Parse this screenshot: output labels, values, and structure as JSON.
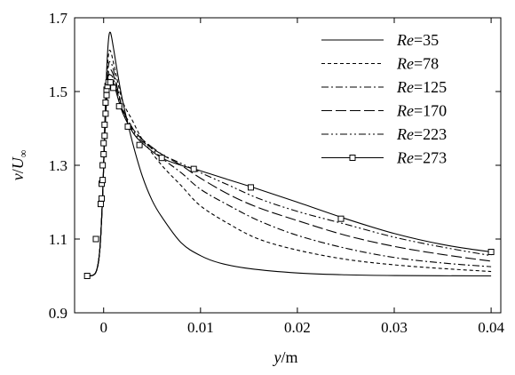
{
  "chart_data": {
    "type": "line",
    "title": "",
    "xlabel": {
      "italic": "y",
      "rest": "/m"
    },
    "ylabel": {
      "italic_v": "v",
      "slash": "/",
      "italic_U": "U",
      "sub": "∞"
    },
    "xlim": [
      -0.003,
      0.041
    ],
    "ylim": [
      0.9,
      1.7
    ],
    "xticks": [
      0,
      0.01,
      0.02,
      0.03,
      0.04
    ],
    "xtick_labels": [
      "0",
      "0.01",
      "0.02",
      "0.03",
      "0.04"
    ],
    "yticks": [
      0.9,
      1.1,
      1.3,
      1.5,
      1.7
    ],
    "ytick_labels": [
      "0.9",
      "1.1",
      "1.3",
      "1.5",
      "1.7"
    ],
    "grid": false,
    "legend_position": "top-right",
    "series": [
      {
        "name": "Re=35",
        "label_italic": "Re",
        "label_value": "=35",
        "dash": "",
        "marker": "",
        "x": [
          -0.0015,
          -0.0008,
          -0.0004,
          -0.0001,
          0.0001,
          0.0003,
          0.0005,
          0.0007,
          0.001,
          0.0015,
          0.002,
          0.003,
          0.004,
          0.005,
          0.006,
          0.008,
          0.01,
          0.012,
          0.015,
          0.02,
          0.025,
          0.03,
          0.04
        ],
        "y": [
          1.0,
          1.01,
          1.07,
          1.22,
          1.4,
          1.55,
          1.64,
          1.66,
          1.62,
          1.54,
          1.47,
          1.36,
          1.27,
          1.205,
          1.16,
          1.09,
          1.055,
          1.035,
          1.02,
          1.008,
          1.003,
          1.001,
          1.0
        ]
      },
      {
        "name": "Re=78",
        "label_italic": "Re",
        "label_value": "=78",
        "dash": "4,3",
        "marker": "",
        "x": [
          -0.0015,
          -0.0008,
          -0.0004,
          -0.0001,
          0.0001,
          0.0003,
          0.0005,
          0.0007,
          0.001,
          0.0015,
          0.002,
          0.003,
          0.004,
          0.006,
          0.008,
          0.01,
          0.013,
          0.016,
          0.02,
          0.025,
          0.03,
          0.035,
          0.04
        ],
        "y": [
          1.0,
          1.01,
          1.07,
          1.22,
          1.39,
          1.52,
          1.6,
          1.61,
          1.58,
          1.52,
          1.47,
          1.42,
          1.37,
          1.3,
          1.245,
          1.19,
          1.14,
          1.1,
          1.07,
          1.045,
          1.03,
          1.02,
          1.012
        ]
      },
      {
        "name": "Re=125",
        "label_italic": "Re",
        "label_value": "=125",
        "dash": "8,3,2,3",
        "marker": "",
        "x": [
          -0.0015,
          -0.0008,
          -0.0004,
          -0.0001,
          0.0001,
          0.0003,
          0.0005,
          0.0007,
          0.001,
          0.0015,
          0.002,
          0.003,
          0.004,
          0.006,
          0.008,
          0.01,
          0.013,
          0.016,
          0.02,
          0.025,
          0.03,
          0.035,
          0.04
        ],
        "y": [
          1.0,
          1.01,
          1.07,
          1.22,
          1.38,
          1.5,
          1.57,
          1.58,
          1.56,
          1.5,
          1.45,
          1.4,
          1.37,
          1.32,
          1.28,
          1.235,
          1.19,
          1.15,
          1.11,
          1.075,
          1.05,
          1.035,
          1.025
        ]
      },
      {
        "name": "Re=170",
        "label_italic": "Re",
        "label_value": "=170",
        "dash": "12,4",
        "marker": "",
        "x": [
          -0.0015,
          -0.0008,
          -0.0004,
          -0.0001,
          0.0001,
          0.0003,
          0.0005,
          0.0007,
          0.001,
          0.0015,
          0.002,
          0.003,
          0.004,
          0.006,
          0.008,
          0.01,
          0.013,
          0.016,
          0.02,
          0.025,
          0.03,
          0.035,
          0.04
        ],
        "y": [
          1.0,
          1.01,
          1.07,
          1.22,
          1.38,
          1.49,
          1.55,
          1.56,
          1.545,
          1.5,
          1.45,
          1.4,
          1.37,
          1.33,
          1.3,
          1.265,
          1.22,
          1.185,
          1.15,
          1.11,
          1.08,
          1.058,
          1.04
        ]
      },
      {
        "name": "Re=223",
        "label_italic": "Re",
        "label_value": "=223",
        "dash": "8,3,2,3,2,3",
        "marker": "",
        "x": [
          -0.0015,
          -0.0008,
          -0.0004,
          -0.0001,
          0.0001,
          0.0003,
          0.0005,
          0.0007,
          0.001,
          0.0015,
          0.002,
          0.003,
          0.004,
          0.006,
          0.008,
          0.01,
          0.013,
          0.016,
          0.02,
          0.025,
          0.03,
          0.035,
          0.04
        ],
        "y": [
          1.0,
          1.01,
          1.07,
          1.22,
          1.38,
          1.48,
          1.54,
          1.545,
          1.535,
          1.49,
          1.445,
          1.395,
          1.365,
          1.33,
          1.305,
          1.28,
          1.245,
          1.21,
          1.175,
          1.14,
          1.105,
          1.078,
          1.055
        ]
      },
      {
        "name": "Re=273",
        "label_italic": "Re",
        "label_value": "=273",
        "dash": "",
        "marker": "square",
        "x": [
          -0.0015,
          -0.0008,
          -0.0004,
          -0.0001,
          0.0001,
          0.0003,
          0.0005,
          0.0007,
          0.001,
          0.0015,
          0.002,
          0.003,
          0.004,
          0.006,
          0.008,
          0.01,
          0.013,
          0.016,
          0.02,
          0.025,
          0.03,
          0.035,
          0.04
        ],
        "y": [
          1.0,
          1.01,
          1.07,
          1.22,
          1.37,
          1.47,
          1.52,
          1.53,
          1.525,
          1.48,
          1.44,
          1.39,
          1.36,
          1.32,
          1.3,
          1.285,
          1.26,
          1.235,
          1.2,
          1.155,
          1.115,
          1.085,
          1.065
        ]
      }
    ],
    "markers_273": {
      "x": [
        -0.0017,
        -0.0008,
        -0.0003,
        -0.0002,
        -0.0002,
        -0.0001,
        -0.0001,
        0.0,
        0.0,
        0.0001,
        0.0001,
        0.0002,
        0.0002,
        0.0003,
        0.0003,
        0.0004,
        0.0005,
        0.0007,
        0.001,
        0.0016,
        0.0025,
        0.0037,
        0.006,
        0.0093,
        0.0152,
        0.0245,
        0.04
      ],
      "y": [
        1.0,
        1.1,
        1.195,
        1.21,
        1.25,
        1.26,
        1.3,
        1.33,
        1.36,
        1.38,
        1.41,
        1.44,
        1.47,
        1.49,
        1.505,
        1.515,
        1.525,
        1.525,
        1.51,
        1.46,
        1.405,
        1.355,
        1.32,
        1.29,
        1.24,
        1.155,
        1.065
      ]
    }
  }
}
